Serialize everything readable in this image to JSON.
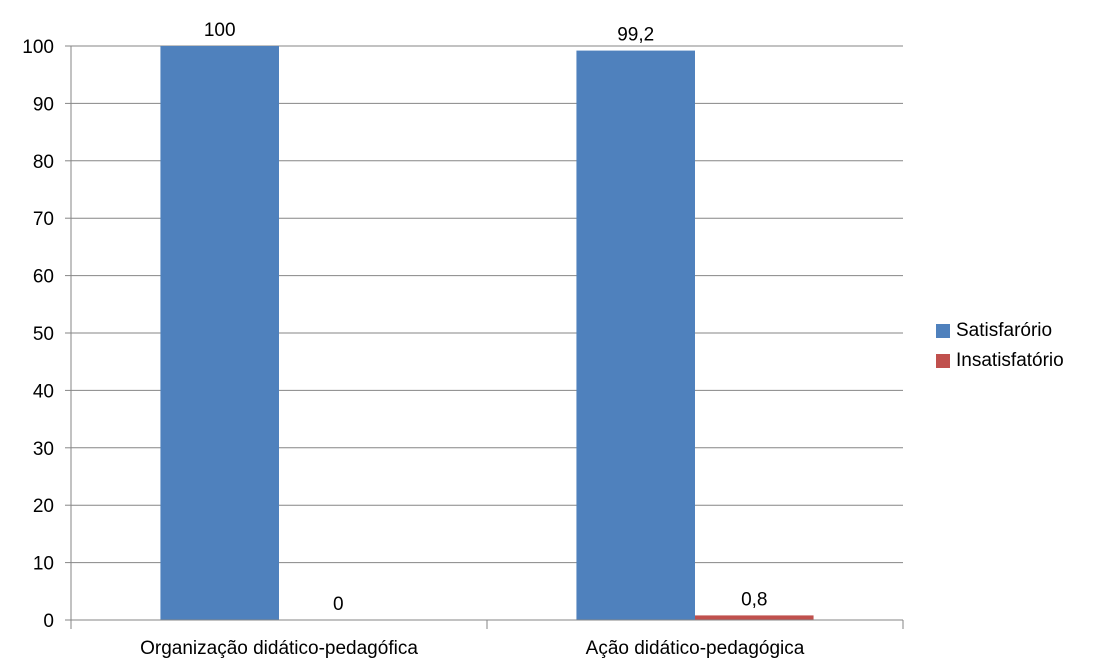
{
  "chart_data": {
    "type": "bar",
    "categories": [
      "Organização didático-pedagófica",
      "Ação didático-pedagógica"
    ],
    "series": [
      {
        "name": "Satisfarório",
        "values": [
          100,
          99.2
        ],
        "labels": [
          "100",
          "99,2"
        ],
        "color": "#4F81BD"
      },
      {
        "name": "Insatisfatório",
        "values": [
          0,
          0.8
        ],
        "labels": [
          "0",
          "0,8"
        ],
        "color": "#C0504D"
      }
    ],
    "ylim": [
      0,
      100
    ],
    "yticks": [
      "0",
      "10",
      "20",
      "30",
      "40",
      "50",
      "60",
      "70",
      "80",
      "90",
      "100"
    ],
    "grid": true,
    "legend_position": "right",
    "title": "",
    "xlabel": "",
    "ylabel": ""
  }
}
